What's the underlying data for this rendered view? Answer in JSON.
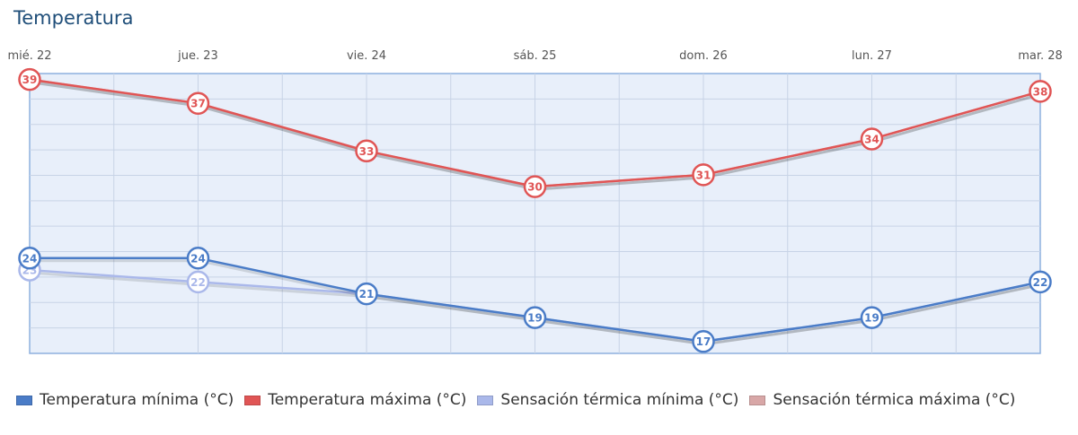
{
  "title": "Temperatura",
  "chart_data": {
    "type": "line",
    "title": "Temperatura",
    "categories": [
      "mié. 22",
      "jue. 23",
      "vie. 24",
      "sáb. 25",
      "dom. 26",
      "lun. 27",
      "mar. 28"
    ],
    "ylim": [
      16,
      39.5
    ],
    "grid": true,
    "series": [
      {
        "name": "Temperatura mínima (°C)",
        "color": "#4a7cc7",
        "values": [
          24,
          24,
          21,
          19,
          17,
          19,
          22
        ],
        "show_labels": true
      },
      {
        "name": "Temperatura máxima (°C)",
        "color": "#e05555",
        "values": [
          39,
          37,
          33,
          30,
          31,
          34,
          38
        ],
        "show_labels": true
      },
      {
        "name": "Sensación térmica mínima (°C)",
        "color": "#aab8ea",
        "values": [
          23,
          22,
          21,
          19,
          17,
          19,
          22
        ],
        "show_labels": false,
        "labeled_points": [
          0,
          1
        ]
      },
      {
        "name": "Sensación térmica máxima (°C)",
        "color": "#d8a7a7",
        "values": [
          39,
          37,
          33,
          30,
          31,
          34,
          38
        ],
        "show_labels": false,
        "labeled_points": []
      }
    ],
    "legend_position": "bottom"
  }
}
